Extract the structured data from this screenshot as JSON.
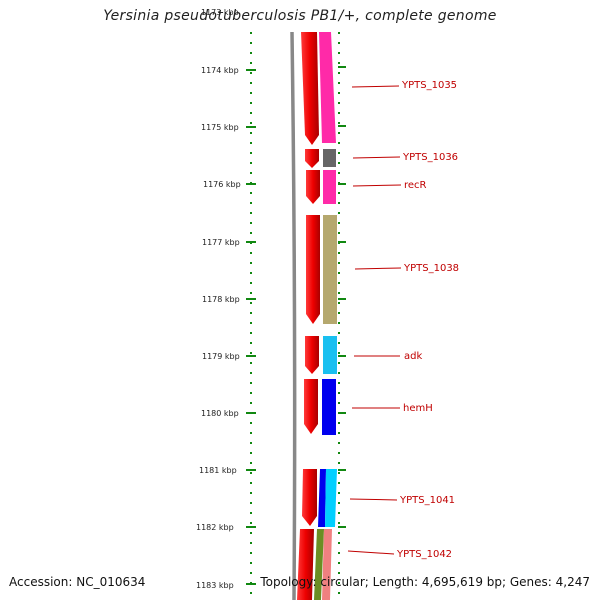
{
  "title": "Yersinia pseudotuberculosis PB1/+, complete genome",
  "footer": {
    "accession": "Accession: NC_010634",
    "summary": "Topology: circular; Length: 4,695,619 bp; Genes: 4,247"
  },
  "scale_labels": [
    "1174 kbp",
    "1175 kbp",
    "1176 kbp",
    "1177 kbp",
    "1178 kbp",
    "1179 kbp",
    "1180 kbp",
    "1181 kbp",
    "1182 kbp",
    "1183 kbp"
  ],
  "genes": [
    {
      "label": "YPTS_1035",
      "color": "#ff2aa8"
    },
    {
      "label": "YPTS_1036",
      "color": "#666666"
    },
    {
      "label": "recR",
      "color": "#ff2aa8"
    },
    {
      "label": "YPTS_1038",
      "color": "#b5a86e"
    },
    {
      "label": "adk",
      "color": "#19c0f0"
    },
    {
      "label": "hemH",
      "color": "#0000ee"
    },
    {
      "label": "YPTS_1041",
      "color": "#00a8ff"
    },
    {
      "label": "YPTS_1042",
      "color": "#f08080"
    }
  ],
  "colors": {
    "cds": "#ee0000",
    "backbone": "#888888",
    "ticks": "#118811",
    "label": "#c00000"
  }
}
